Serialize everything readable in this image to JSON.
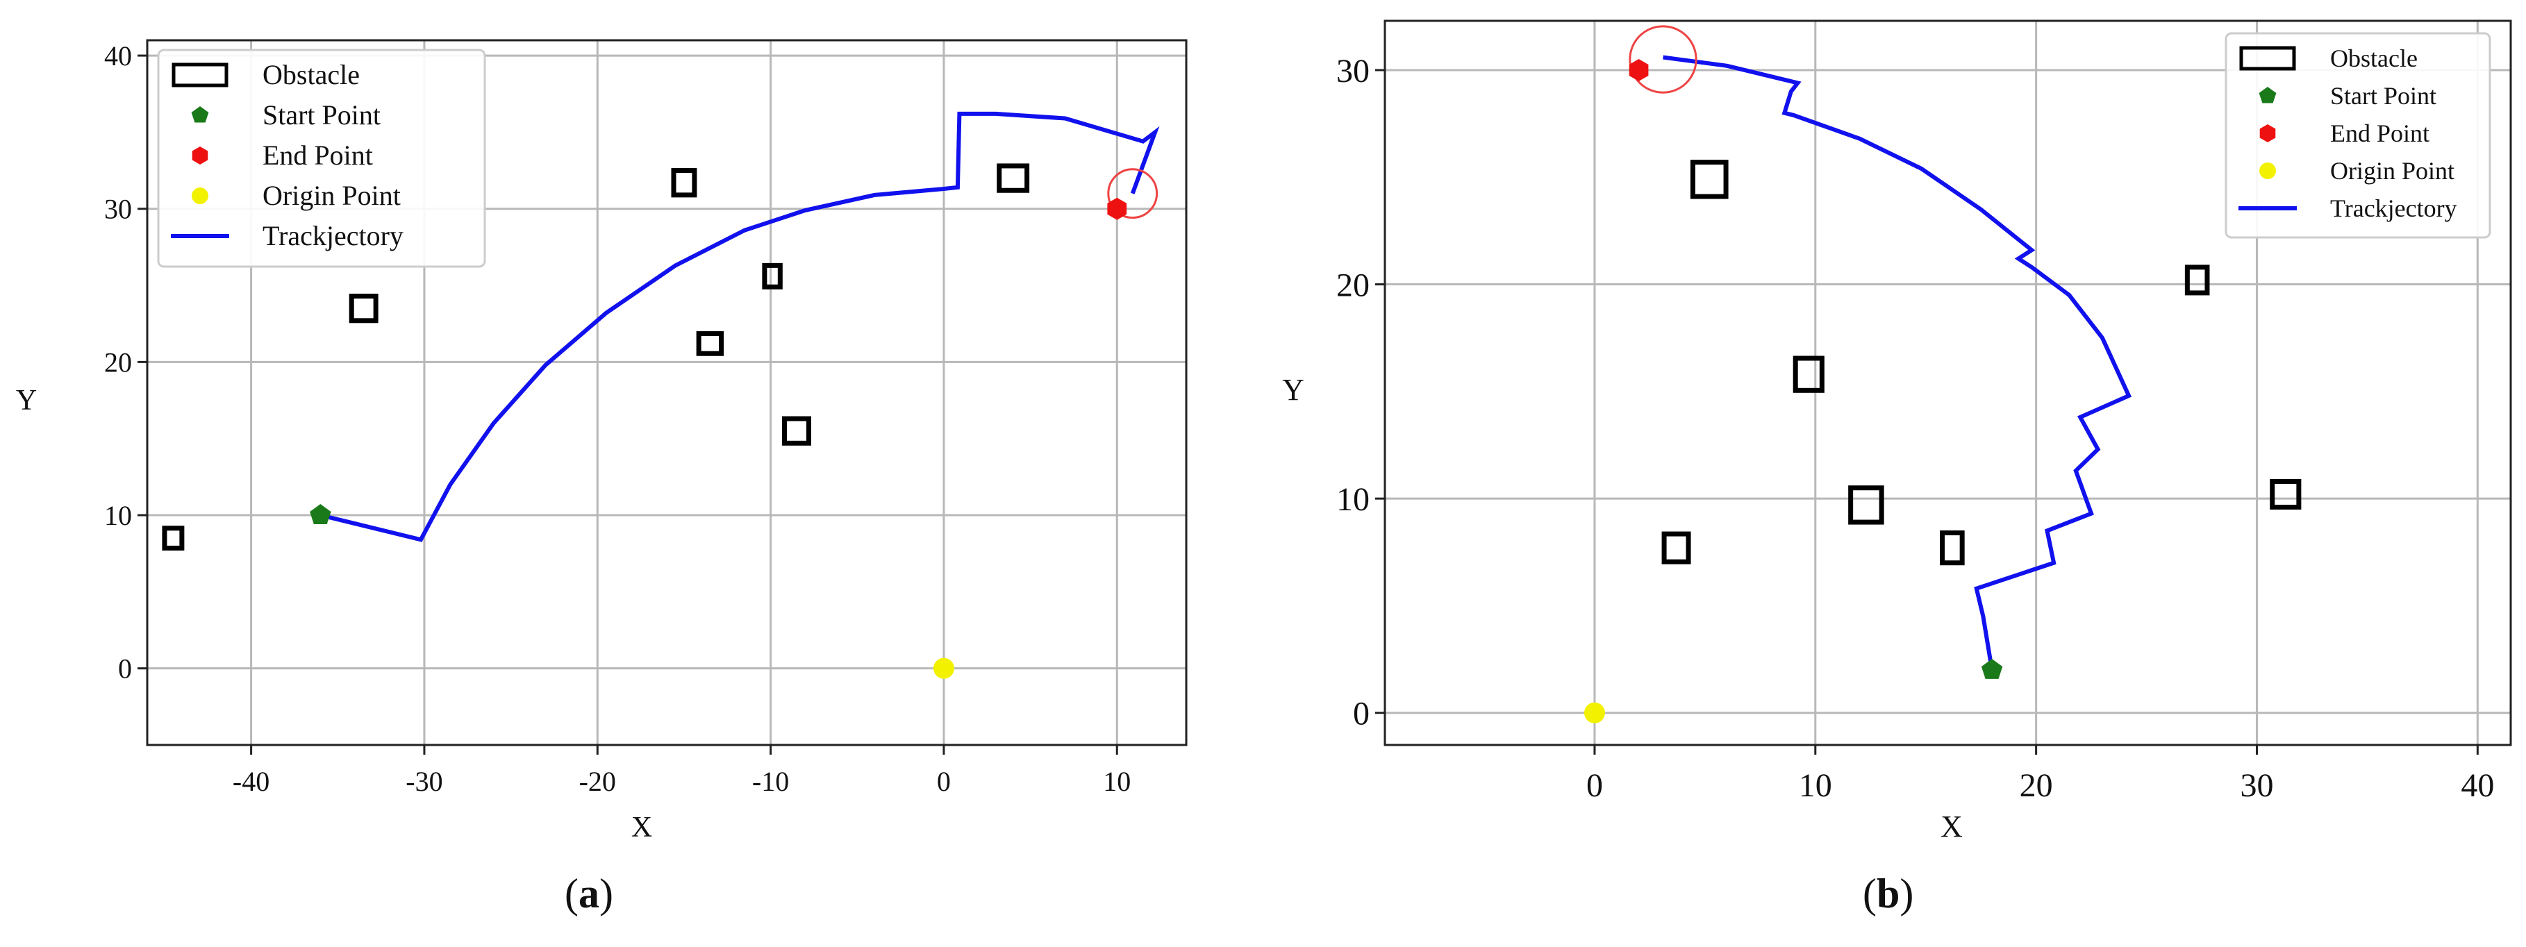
{
  "chart_data": [
    {
      "type": "scatter",
      "panel_label": "a",
      "title": "",
      "xlabel": "X",
      "ylabel": "Y",
      "xlim": [
        -46,
        14
      ],
      "ylim": [
        -5,
        41
      ],
      "xticks": [
        -40,
        -30,
        -20,
        -10,
        0,
        10
      ],
      "yticks": [
        0,
        10,
        20,
        30,
        40
      ],
      "grid": true,
      "legend_position": "top-left",
      "legend": [
        "Obstacle",
        "Start Point",
        "End Point",
        "Origin Point",
        "Trackjectory"
      ],
      "obstacles": [
        {
          "x": -44.5,
          "y": 8.5,
          "w": 1.0,
          "h": 1.3
        },
        {
          "x": -33.5,
          "y": 23.5,
          "w": 1.4,
          "h": 1.6
        },
        {
          "x": -15.0,
          "y": 31.7,
          "w": 1.2,
          "h": 1.6
        },
        {
          "x": -13.5,
          "y": 21.2,
          "w": 1.3,
          "h": 1.3
        },
        {
          "x": -9.9,
          "y": 25.6,
          "w": 0.9,
          "h": 1.4
        },
        {
          "x": -8.5,
          "y": 15.5,
          "w": 1.4,
          "h": 1.6
        },
        {
          "x": 4.0,
          "y": 32.0,
          "w": 1.6,
          "h": 1.6
        }
      ],
      "start": {
        "x": -36,
        "y": 10
      },
      "end": {
        "x": 10,
        "y": 30
      },
      "origin": {
        "x": 0,
        "y": 0
      },
      "goal_circle": {
        "x": 10.9,
        "y": 31.0,
        "r": 1.4
      },
      "trajectory": [
        [
          -36.0,
          10.0
        ],
        [
          -30.2,
          8.4
        ],
        [
          -28.5,
          12.0
        ],
        [
          -26.0,
          16.0
        ],
        [
          -23.0,
          19.8
        ],
        [
          -19.5,
          23.2
        ],
        [
          -15.5,
          26.3
        ],
        [
          -11.5,
          28.6
        ],
        [
          -8.0,
          29.9
        ],
        [
          -4.0,
          30.9
        ],
        [
          0.0,
          31.3
        ],
        [
          0.8,
          31.4
        ],
        [
          0.9,
          36.2
        ],
        [
          3.0,
          36.2
        ],
        [
          7.0,
          35.9
        ],
        [
          11.5,
          34.4
        ],
        [
          12.2,
          35.0
        ],
        [
          10.9,
          31.0
        ]
      ],
      "colors": {
        "trajectory": "#1111ee",
        "start": "#1a7a1a",
        "end": "#ee1111",
        "origin": "#f2f200",
        "obstacle": "#000000",
        "circle": "#ee4444"
      }
    },
    {
      "type": "scatter",
      "panel_label": "b",
      "title": "",
      "xlabel": "X",
      "ylabel": "Y",
      "xlim": [
        -9.5,
        41.5
      ],
      "ylim": [
        -1.5,
        32.3
      ],
      "xticks": [
        0,
        10,
        20,
        30,
        40
      ],
      "yticks": [
        0,
        10,
        20,
        30
      ],
      "grid": true,
      "legend_position": "top-right",
      "legend": [
        "Obstacle",
        "Start Point",
        "End Point",
        "Origin Point",
        "Trackjectory"
      ],
      "obstacles": [
        {
          "x": 5.2,
          "y": 24.9,
          "w": 1.5,
          "h": 1.6
        },
        {
          "x": 9.7,
          "y": 15.8,
          "w": 1.2,
          "h": 1.5
        },
        {
          "x": 3.7,
          "y": 7.7,
          "w": 1.1,
          "h": 1.3
        },
        {
          "x": 12.3,
          "y": 9.7,
          "w": 1.4,
          "h": 1.6
        },
        {
          "x": 16.2,
          "y": 7.7,
          "w": 0.9,
          "h": 1.4
        },
        {
          "x": 27.3,
          "y": 20.2,
          "w": 0.9,
          "h": 1.2
        },
        {
          "x": 31.3,
          "y": 10.2,
          "w": 1.2,
          "h": 1.2
        }
      ],
      "start": {
        "x": 18.0,
        "y": 2.0
      },
      "end": {
        "x": 2.0,
        "y": 30.0
      },
      "origin": {
        "x": 0,
        "y": 0
      },
      "goal_circle": {
        "x": 3.1,
        "y": 30.5,
        "r": 1.5
      },
      "trajectory": [
        [
          18.0,
          2.0
        ],
        [
          17.6,
          4.5
        ],
        [
          17.3,
          5.8
        ],
        [
          20.8,
          7.0
        ],
        [
          20.5,
          8.5
        ],
        [
          22.5,
          9.3
        ],
        [
          21.8,
          11.3
        ],
        [
          22.8,
          12.3
        ],
        [
          22.0,
          13.8
        ],
        [
          24.2,
          14.8
        ],
        [
          23.0,
          17.5
        ],
        [
          21.5,
          19.5
        ],
        [
          19.8,
          20.8
        ],
        [
          19.2,
          21.2
        ],
        [
          19.8,
          21.6
        ],
        [
          17.5,
          23.5
        ],
        [
          14.8,
          25.4
        ],
        [
          12.0,
          26.8
        ],
        [
          9.0,
          27.9
        ],
        [
          8.6,
          28.0
        ],
        [
          8.9,
          29.0
        ],
        [
          9.2,
          29.4
        ],
        [
          6.0,
          30.2
        ],
        [
          3.1,
          30.6
        ]
      ],
      "colors": {
        "trajectory": "#1111ee",
        "start": "#1a7a1a",
        "end": "#ee1111",
        "origin": "#f2f200",
        "obstacle": "#000000",
        "circle": "#ee4444"
      }
    }
  ]
}
